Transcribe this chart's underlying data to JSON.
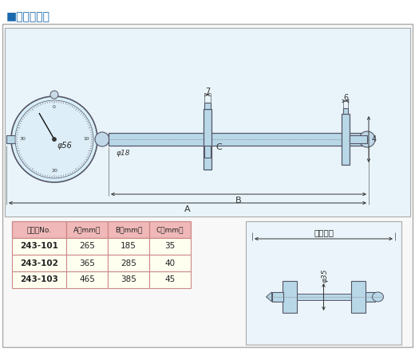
{
  "title": "■外観寸法図",
  "title_color": "#1a6aad",
  "bg_color": "#ffffff",
  "outer_border_color": "#aaaaaa",
  "inner_border_color": "#999999",
  "diagram_bg": "#e8f4fa",
  "body_color": "#b8d8e8",
  "body_edge": "#555566",
  "table_header_bg": "#f0b8b8",
  "table_row_bg": "#fffff0",
  "table_border": "#cc8888",
  "table_header": [
    "コードNo.",
    "A（mm）",
    "B（mm）",
    "C（mm）"
  ],
  "table_rows": [
    [
      "243-101",
      "265",
      "185",
      "35"
    ],
    [
      "243-102",
      "365",
      "285",
      "40"
    ],
    [
      "243-103",
      "465",
      "385",
      "45"
    ]
  ],
  "phi56": "φ56",
  "phi18": "φ18",
  "phi35": "φ35",
  "label_7": "7",
  "label_6": "6",
  "label_4": "4",
  "label_A": "A",
  "label_B": "B",
  "label_C": "C",
  "sokutei": "測定範囲"
}
